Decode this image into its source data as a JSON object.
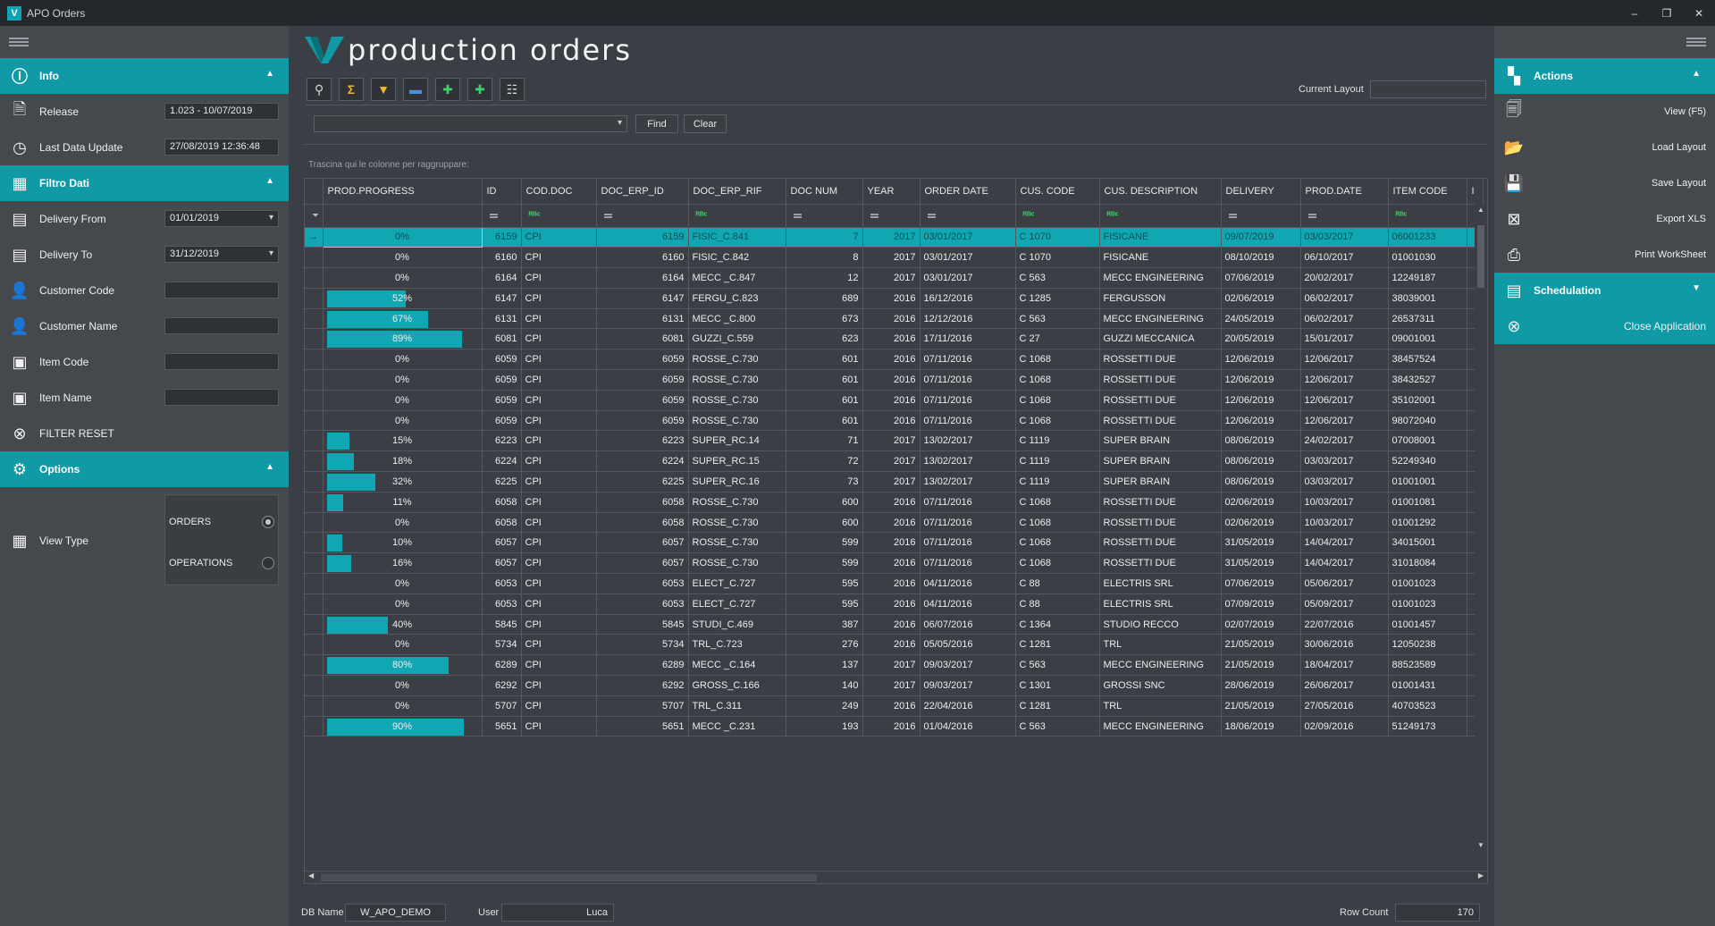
{
  "window": {
    "title": "APO Orders",
    "controls": [
      "–",
      "❐",
      "✕"
    ]
  },
  "page_title": "production orders",
  "left": {
    "info": {
      "header": "Info",
      "release_label": "Release",
      "release_value": "1.023 - 10/07/2019",
      "last_update_label": "Last Data Update",
      "last_update_value": "27/08/2019 12:36:48"
    },
    "filter": {
      "header": "Filtro Dati",
      "delivery_from_label": "Delivery From",
      "delivery_from_value": "01/01/2019",
      "delivery_to_label": "Delivery To",
      "delivery_to_value": "31/12/2019",
      "customer_code_label": "Customer Code",
      "customer_name_label": "Customer Name",
      "item_code_label": "Item Code",
      "item_name_label": "Item Name",
      "reset_label": "FILTER RESET"
    },
    "options": {
      "header": "Options",
      "view_type_label": "View Type",
      "orders_label": "ORDERS",
      "operations_label": "OPERATIONS",
      "selected": "ORDERS"
    }
  },
  "right": {
    "actions_header": "Actions",
    "view": "View (F5)",
    "load_layout": "Load Layout",
    "save_layout": "Save Layout",
    "export_xls": "Export XLS",
    "print": "Print WorkSheet",
    "schedulation_header": "Schedulation",
    "close_app": "Close Application"
  },
  "toolbar": {
    "current_layout_label": "Current Layout",
    "current_layout_value": ""
  },
  "find": {
    "find_label": "Find",
    "clear_label": "Clear",
    "value": ""
  },
  "group_hint": "Trascina qui le colonne per raggruppare:",
  "grid": {
    "columns": [
      "PROD.PROGRESS",
      "ID",
      "COD.DOC",
      "DOC_ERP_ID",
      "DOC_ERP_RIF",
      "DOC NUM",
      "YEAR",
      "ORDER DATE",
      "CUS. CODE",
      "CUS. DESCRIPTION",
      "DELIVERY",
      "PROD.DATE",
      "ITEM CODE",
      "I"
    ],
    "rows": [
      {
        "progress": 0,
        "pct": "0%",
        "id": "6159",
        "cod": "CPI",
        "erp_id": "6159",
        "erp_rif": "FISIC_C.841",
        "num": "7",
        "year": "2017",
        "order_date": "03/01/2017",
        "cus_code": "C 1070",
        "cus_desc": "FISICANE",
        "delivery": "09/07/2019",
        "prod_date": "03/03/2017",
        "item": "06001233"
      },
      {
        "progress": 0,
        "pct": "0%",
        "id": "6160",
        "cod": "CPI",
        "erp_id": "6160",
        "erp_rif": "FISIC_C.842",
        "num": "8",
        "year": "2017",
        "order_date": "03/01/2017",
        "cus_code": "C 1070",
        "cus_desc": "FISICANE",
        "delivery": "08/10/2019",
        "prod_date": "06/10/2017",
        "item": "01001030"
      },
      {
        "progress": 0,
        "pct": "0%",
        "id": "6164",
        "cod": "CPI",
        "erp_id": "6164",
        "erp_rif": "MECC _C.847",
        "num": "12",
        "year": "2017",
        "order_date": "03/01/2017",
        "cus_code": "C 563",
        "cus_desc": "MECC ENGINEERING",
        "delivery": "07/06/2019",
        "prod_date": "20/02/2017",
        "item": "12249187"
      },
      {
        "progress": 52,
        "pct": "52%",
        "id": "6147",
        "cod": "CPI",
        "erp_id": "6147",
        "erp_rif": "FERGU_C.823",
        "num": "689",
        "year": "2016",
        "order_date": "16/12/2016",
        "cus_code": "C 1285",
        "cus_desc": "FERGUSSON",
        "delivery": "02/06/2019",
        "prod_date": "06/02/2017",
        "item": "38039001"
      },
      {
        "progress": 67,
        "pct": "67%",
        "id": "6131",
        "cod": "CPI",
        "erp_id": "6131",
        "erp_rif": "MECC _C.800",
        "num": "673",
        "year": "2016",
        "order_date": "12/12/2016",
        "cus_code": "C 563",
        "cus_desc": "MECC ENGINEERING",
        "delivery": "24/05/2019",
        "prod_date": "06/02/2017",
        "item": "26537311"
      },
      {
        "progress": 89,
        "pct": "89%",
        "id": "6081",
        "cod": "CPI",
        "erp_id": "6081",
        "erp_rif": "GUZZI_C.559",
        "num": "623",
        "year": "2016",
        "order_date": "17/11/2016",
        "cus_code": "C 27",
        "cus_desc": "GUZZI MECCANICA",
        "delivery": "20/05/2019",
        "prod_date": "15/01/2017",
        "item": "09001001"
      },
      {
        "progress": 0,
        "pct": "0%",
        "id": "6059",
        "cod": "CPI",
        "erp_id": "6059",
        "erp_rif": "ROSSE_C.730",
        "num": "601",
        "year": "2016",
        "order_date": "07/11/2016",
        "cus_code": "C 1068",
        "cus_desc": "ROSSETTI DUE",
        "delivery": "12/06/2019",
        "prod_date": "12/06/2017",
        "item": "38457524"
      },
      {
        "progress": 0,
        "pct": "0%",
        "id": "6059",
        "cod": "CPI",
        "erp_id": "6059",
        "erp_rif": "ROSSE_C.730",
        "num": "601",
        "year": "2016",
        "order_date": "07/11/2016",
        "cus_code": "C 1068",
        "cus_desc": "ROSSETTI DUE",
        "delivery": "12/06/2019",
        "prod_date": "12/06/2017",
        "item": "38432527"
      },
      {
        "progress": 0,
        "pct": "0%",
        "id": "6059",
        "cod": "CPI",
        "erp_id": "6059",
        "erp_rif": "ROSSE_C.730",
        "num": "601",
        "year": "2016",
        "order_date": "07/11/2016",
        "cus_code": "C 1068",
        "cus_desc": "ROSSETTI DUE",
        "delivery": "12/06/2019",
        "prod_date": "12/06/2017",
        "item": "35102001"
      },
      {
        "progress": 0,
        "pct": "0%",
        "id": "6059",
        "cod": "CPI",
        "erp_id": "6059",
        "erp_rif": "ROSSE_C.730",
        "num": "601",
        "year": "2016",
        "order_date": "07/11/2016",
        "cus_code": "C 1068",
        "cus_desc": "ROSSETTI DUE",
        "delivery": "12/06/2019",
        "prod_date": "12/06/2017",
        "item": "98072040"
      },
      {
        "progress": 15,
        "pct": "15%",
        "id": "6223",
        "cod": "CPI",
        "erp_id": "6223",
        "erp_rif": "SUPER_RC.14",
        "num": "71",
        "year": "2017",
        "order_date": "13/02/2017",
        "cus_code": "C 1119",
        "cus_desc": "SUPER BRAIN",
        "delivery": "08/06/2019",
        "prod_date": "24/02/2017",
        "item": "07008001"
      },
      {
        "progress": 18,
        "pct": "18%",
        "id": "6224",
        "cod": "CPI",
        "erp_id": "6224",
        "erp_rif": "SUPER_RC.15",
        "num": "72",
        "year": "2017",
        "order_date": "13/02/2017",
        "cus_code": "C 1119",
        "cus_desc": "SUPER BRAIN",
        "delivery": "08/06/2019",
        "prod_date": "03/03/2017",
        "item": "52249340"
      },
      {
        "progress": 32,
        "pct": "32%",
        "id": "6225",
        "cod": "CPI",
        "erp_id": "6225",
        "erp_rif": "SUPER_RC.16",
        "num": "73",
        "year": "2017",
        "order_date": "13/02/2017",
        "cus_code": "C 1119",
        "cus_desc": "SUPER BRAIN",
        "delivery": "08/06/2019",
        "prod_date": "03/03/2017",
        "item": "01001001"
      },
      {
        "progress": 11,
        "pct": "11%",
        "id": "6058",
        "cod": "CPI",
        "erp_id": "6058",
        "erp_rif": "ROSSE_C.730",
        "num": "600",
        "year": "2016",
        "order_date": "07/11/2016",
        "cus_code": "C 1068",
        "cus_desc": "ROSSETTI DUE",
        "delivery": "02/06/2019",
        "prod_date": "10/03/2017",
        "item": "01001081"
      },
      {
        "progress": 0,
        "pct": "0%",
        "id": "6058",
        "cod": "CPI",
        "erp_id": "6058",
        "erp_rif": "ROSSE_C.730",
        "num": "600",
        "year": "2016",
        "order_date": "07/11/2016",
        "cus_code": "C 1068",
        "cus_desc": "ROSSETTI DUE",
        "delivery": "02/06/2019",
        "prod_date": "10/03/2017",
        "item": "01001292"
      },
      {
        "progress": 10,
        "pct": "10%",
        "id": "6057",
        "cod": "CPI",
        "erp_id": "6057",
        "erp_rif": "ROSSE_C.730",
        "num": "599",
        "year": "2016",
        "order_date": "07/11/2016",
        "cus_code": "C 1068",
        "cus_desc": "ROSSETTI DUE",
        "delivery": "31/05/2019",
        "prod_date": "14/04/2017",
        "item": "34015001"
      },
      {
        "progress": 16,
        "pct": "16%",
        "id": "6057",
        "cod": "CPI",
        "erp_id": "6057",
        "erp_rif": "ROSSE_C.730",
        "num": "599",
        "year": "2016",
        "order_date": "07/11/2016",
        "cus_code": "C 1068",
        "cus_desc": "ROSSETTI DUE",
        "delivery": "31/05/2019",
        "prod_date": "14/04/2017",
        "item": "31018084"
      },
      {
        "progress": 0,
        "pct": "0%",
        "id": "6053",
        "cod": "CPI",
        "erp_id": "6053",
        "erp_rif": "ELECT_C.727",
        "num": "595",
        "year": "2016",
        "order_date": "04/11/2016",
        "cus_code": "C 88",
        "cus_desc": "ELECTRIS SRL",
        "delivery": "07/06/2019",
        "prod_date": "05/06/2017",
        "item": "01001023"
      },
      {
        "progress": 0,
        "pct": "0%",
        "id": "6053",
        "cod": "CPI",
        "erp_id": "6053",
        "erp_rif": "ELECT_C.727",
        "num": "595",
        "year": "2016",
        "order_date": "04/11/2016",
        "cus_code": "C 88",
        "cus_desc": "ELECTRIS SRL",
        "delivery": "07/09/2019",
        "prod_date": "05/09/2017",
        "item": "01001023"
      },
      {
        "progress": 40,
        "pct": "40%",
        "id": "5845",
        "cod": "CPI",
        "erp_id": "5845",
        "erp_rif": "STUDI_C.469",
        "num": "387",
        "year": "2016",
        "order_date": "06/07/2016",
        "cus_code": "C 1364",
        "cus_desc": "STUDIO RECCO",
        "delivery": "02/07/2019",
        "prod_date": "22/07/2016",
        "item": "01001457"
      },
      {
        "progress": 0,
        "pct": "0%",
        "id": "5734",
        "cod": "CPI",
        "erp_id": "5734",
        "erp_rif": "TRL_C.723",
        "num": "276",
        "year": "2016",
        "order_date": "05/05/2016",
        "cus_code": "C 1281",
        "cus_desc": "TRL",
        "delivery": "21/05/2019",
        "prod_date": "30/06/2016",
        "item": "12050238"
      },
      {
        "progress": 80,
        "pct": "80%",
        "id": "6289",
        "cod": "CPI",
        "erp_id": "6289",
        "erp_rif": "MECC _C.164",
        "num": "137",
        "year": "2017",
        "order_date": "09/03/2017",
        "cus_code": "C 563",
        "cus_desc": "MECC ENGINEERING",
        "delivery": "21/05/2019",
        "prod_date": "18/04/2017",
        "item": "88523589"
      },
      {
        "progress": 0,
        "pct": "0%",
        "id": "6292",
        "cod": "CPI",
        "erp_id": "6292",
        "erp_rif": "GROSS_C.166",
        "num": "140",
        "year": "2017",
        "order_date": "09/03/2017",
        "cus_code": "C 1301",
        "cus_desc": "GROSSI SNC",
        "delivery": "28/06/2019",
        "prod_date": "26/06/2017",
        "item": "01001431"
      },
      {
        "progress": 0,
        "pct": "0%",
        "id": "5707",
        "cod": "CPI",
        "erp_id": "5707",
        "erp_rif": "TRL_C.311",
        "num": "249",
        "year": "2016",
        "order_date": "22/04/2016",
        "cus_code": "C 1281",
        "cus_desc": "TRL",
        "delivery": "21/05/2019",
        "prod_date": "27/05/2016",
        "item": "40703523"
      },
      {
        "progress": 90,
        "pct": "90%",
        "id": "5651",
        "cod": "CPI",
        "erp_id": "5651",
        "erp_rif": "MECC _C.231",
        "num": "193",
        "year": "2016",
        "order_date": "01/04/2016",
        "cus_code": "C 563",
        "cus_desc": "MECC ENGINEERING",
        "delivery": "18/06/2019",
        "prod_date": "02/09/2016",
        "item": "51249173"
      }
    ]
  },
  "status": {
    "db_name_label": "DB Name",
    "db_name_value": "W_APO_DEMO",
    "user_label": "User",
    "user_value": "Luca",
    "row_count_label": "Row Count",
    "row_count_value": "170"
  },
  "colors": {
    "accent": "#0f9aa6",
    "bar": "#10a7b3",
    "background": "#3b3e44",
    "panel": "#45484d"
  }
}
